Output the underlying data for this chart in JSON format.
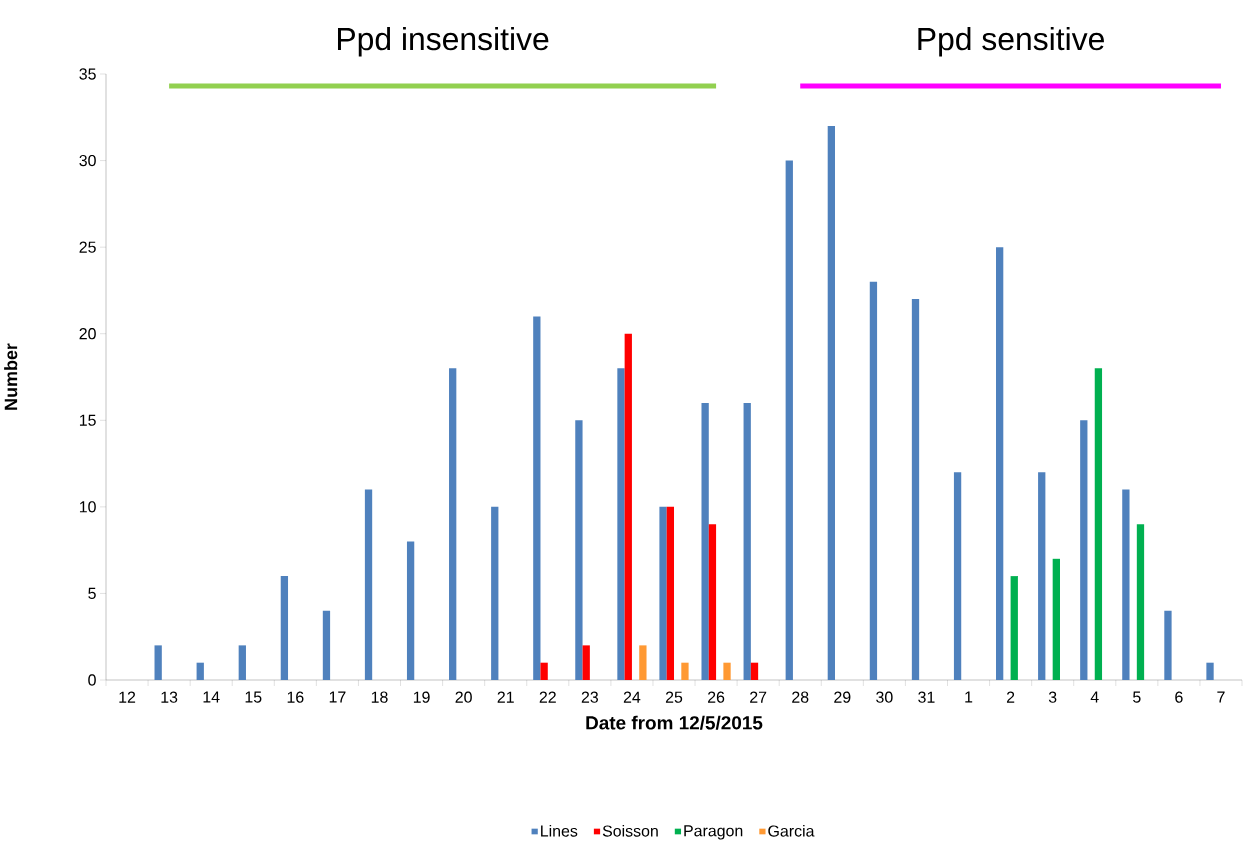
{
  "chart_data": {
    "type": "bar",
    "xlabel": "Date from 12/5/2015",
    "ylabel": "Number",
    "categories": [
      "12",
      "13",
      "14",
      "15",
      "16",
      "17",
      "18",
      "19",
      "20",
      "21",
      "22",
      "23",
      "24",
      "25",
      "26",
      "27",
      "28",
      "29",
      "30",
      "31",
      "1",
      "2",
      "3",
      "4",
      "5",
      "6",
      "7"
    ],
    "series": [
      {
        "name": "Lines",
        "color": "#4f81bd",
        "values": [
          null,
          2,
          1,
          2,
          6,
          4,
          11,
          8,
          18,
          10,
          21,
          15,
          18,
          10,
          16,
          16,
          30,
          32,
          23,
          22,
          12,
          25,
          12,
          15,
          11,
          4,
          1
        ]
      },
      {
        "name": "Soisson",
        "color": "#ff0000",
        "values": [
          null,
          null,
          null,
          null,
          null,
          null,
          null,
          null,
          null,
          null,
          1,
          2,
          20,
          10,
          9,
          1,
          null,
          null,
          null,
          null,
          null,
          null,
          null,
          null,
          null,
          null,
          null
        ]
      },
      {
        "name": "Paragon",
        "color": "#00b050",
        "values": [
          null,
          null,
          null,
          null,
          null,
          null,
          null,
          null,
          null,
          null,
          null,
          null,
          null,
          null,
          null,
          null,
          null,
          null,
          null,
          null,
          null,
          6,
          7,
          18,
          9,
          null,
          null
        ]
      },
      {
        "name": "Garcia",
        "color": "#ff9933",
        "values": [
          null,
          null,
          null,
          null,
          null,
          null,
          null,
          null,
          null,
          null,
          null,
          null,
          2,
          1,
          1,
          null,
          null,
          null,
          null,
          null,
          null,
          null,
          null,
          null,
          null,
          null,
          null
        ]
      },
      {
        "type": "line",
        "color": "#92d050",
        "x": [
          "13",
          "26"
        ],
        "values": [
          34.3,
          34.3
        ]
      },
      {
        "type": "line",
        "color": "#ff00ff",
        "x": [
          "28",
          "7"
        ],
        "values": [
          34.3,
          34.3
        ]
      }
    ],
    "ylim": [
      0,
      35
    ],
    "yticks": [
      0,
      5,
      10,
      15,
      20,
      25,
      30,
      35
    ],
    "annotations": [
      "Ppd insensitive",
      "Ppd sensitive"
    ],
    "legend": "bottom",
    "grid": false
  }
}
